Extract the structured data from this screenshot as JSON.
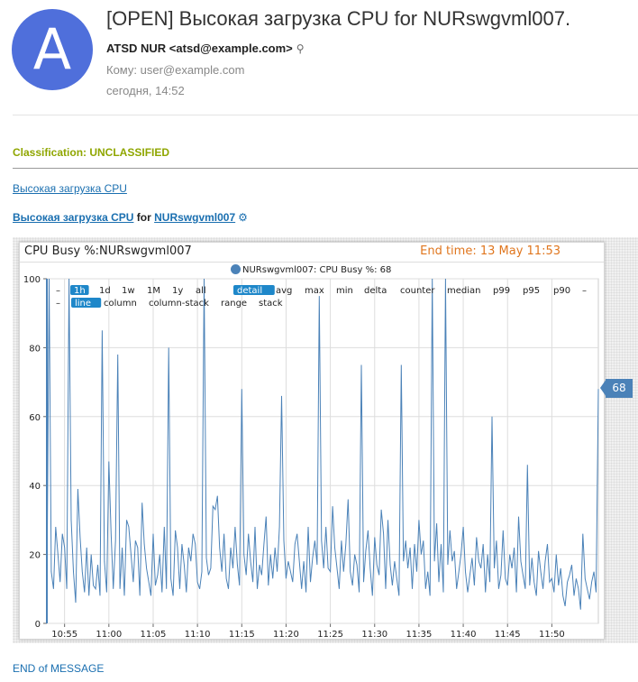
{
  "email": {
    "avatar_letter": "A",
    "subject": "[OPEN] Высокая загрузка CPU for NURswgvml007.",
    "from": "ATSD NUR <atsd@example.com>",
    "from_icon": "magnifier-icon",
    "to": "Кому: user@example.com",
    "date": "сегодня, 14:52"
  },
  "body": {
    "classification": "Classification: UNCLASSIFIED",
    "rule_link": "Высокая загрузка CPU",
    "title_rule": "Высокая загрузка CPU",
    "title_for": "for",
    "title_entity": "NURswgvml007",
    "gear_icon": "⚙",
    "end": "END of MESSAGE"
  },
  "widget": {
    "title": "CPU Busy %:NURswgvml007",
    "end_time": "End time: 13 May 11:53",
    "legend": "NURswgvml007: CPU Busy %: 68",
    "badge": "68",
    "period_controls": [
      "–",
      "1h",
      "1d",
      "1w",
      "1M",
      "1y",
      "all"
    ],
    "period_active": "1h",
    "stat_controls": [
      "detail",
      "avg",
      "max",
      "min",
      "delta",
      "counter",
      "median",
      "p99",
      "p95",
      "p90",
      "–"
    ],
    "stat_active": "detail",
    "mode_controls": [
      "–",
      "line",
      "column",
      "column-stack",
      "range",
      "stack"
    ],
    "mode_active": "line"
  },
  "chart_data": {
    "type": "line",
    "ylim": [
      0,
      100
    ],
    "yticks": [
      0,
      20,
      40,
      60,
      80,
      100
    ],
    "xticks": [
      "10:55",
      "11:00",
      "11:05",
      "11:10",
      "11:15",
      "11:20",
      "11:25",
      "11:30",
      "11:35",
      "11:40",
      "11:45",
      "11:50"
    ],
    "x_start": "10:53",
    "x_interval_seconds": 15,
    "color": "#4b82b8",
    "series": [
      {
        "name": "NURswgvml007: CPU Busy %",
        "values": [
          7,
          100,
          15,
          10,
          28,
          20,
          12,
          26,
          22,
          10,
          100,
          30,
          15,
          6,
          39,
          25,
          15,
          9,
          22,
          8,
          20,
          11,
          10,
          17,
          8,
          85,
          18,
          9,
          47,
          26,
          10,
          24,
          78,
          10,
          22,
          8,
          30,
          28,
          20,
          12,
          24,
          22,
          8,
          35,
          23,
          16,
          12,
          8,
          26,
          11,
          14,
          20,
          9,
          28,
          10,
          80,
          13,
          8,
          27,
          22,
          10,
          23,
          17,
          9,
          22,
          18,
          26,
          23,
          12,
          10,
          15,
          100,
          19,
          14,
          16,
          34,
          33,
          37,
          22,
          15,
          26,
          13,
          10,
          22,
          16,
          28,
          17,
          11,
          68,
          20,
          14,
          26,
          18,
          12,
          28,
          10,
          17,
          14,
          23,
          31,
          11,
          20,
          13,
          22,
          15,
          28,
          66,
          24,
          13,
          18,
          15,
          12,
          23,
          26,
          18,
          10,
          18,
          9,
          28,
          12,
          19,
          24,
          17,
          95,
          24,
          16,
          28,
          16,
          15,
          34,
          22,
          16,
          10,
          24,
          15,
          23,
          36,
          15,
          11,
          20,
          17,
          9,
          75,
          12,
          21,
          27,
          16,
          8,
          25,
          17,
          14,
          33,
          26,
          10,
          30,
          17,
          11,
          18,
          13,
          8,
          75,
          18,
          24,
          16,
          22,
          10,
          23,
          15,
          30,
          20,
          24,
          10,
          15,
          8,
          100,
          18,
          29,
          12,
          23,
          9,
          100,
          17,
          27,
          18,
          21,
          10,
          15,
          20,
          28,
          15,
          9,
          14,
          19,
          11,
          25,
          18,
          16,
          23,
          9,
          20,
          12,
          60,
          16,
          24,
          10,
          14,
          27,
          13,
          11,
          20,
          16,
          22,
          9,
          31,
          18,
          14,
          10,
          46,
          11,
          19,
          12,
          8,
          21,
          15,
          10,
          18,
          23,
          12,
          13,
          9,
          20,
          11,
          16,
          8,
          5,
          12,
          14,
          17,
          8,
          13,
          10,
          4,
          26,
          13,
          10,
          7,
          12,
          15,
          9,
          68
        ]
      }
    ]
  }
}
